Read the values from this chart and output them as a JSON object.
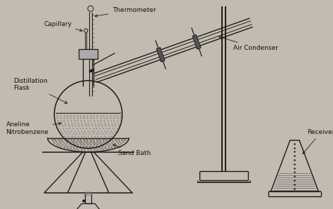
{
  "bg_color": "#c4bbb0",
  "line_color": "#1a1a1a",
  "labels": {
    "capillary": "Capillary",
    "thermometer": "Thermometer",
    "distillation_flask": "Distillation\nFlask",
    "aneline": "Aneline\nNitrobenzene",
    "sand_bath": "Sand Bath",
    "air_condenser": "Air Condenser",
    "receiver": "Receiver"
  },
  "label_fontsize": 6.5,
  "figsize": [
    4.74,
    2.98
  ],
  "dpi": 100
}
